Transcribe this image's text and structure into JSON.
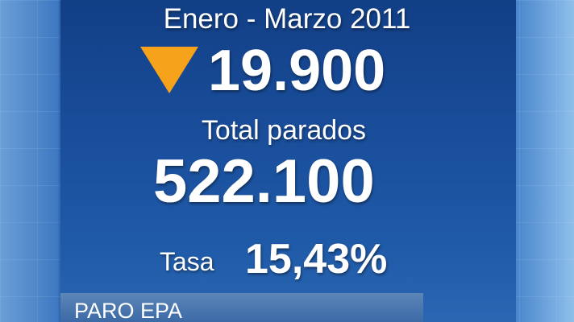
{
  "period": "Enero - Marzo 2011",
  "change": "19.900",
  "total": {
    "label": "Total parados",
    "value": "522.100"
  },
  "rate": {
    "label": "Tasa",
    "value": "15,43%"
  },
  "footer": "PARO EPA"
}
